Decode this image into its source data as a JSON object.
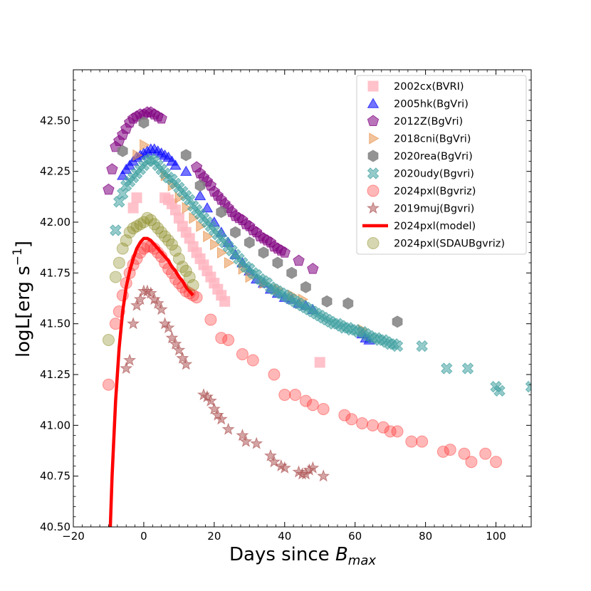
{
  "chart_data": {
    "type": "scatter",
    "title": "",
    "xlabel": "Days since B_max",
    "xlabel_prefix": "Days since ",
    "xlabel_italic": "B",
    "xlabel_sub": "max",
    "ylabel": "logL[erg s^-1]",
    "ylabel_main": "logL[erg s",
    "ylabel_sup": "−1",
    "ylabel_close": "]",
    "xlim": [
      -20,
      110
    ],
    "ylim": [
      40.5,
      42.75
    ],
    "xticks": [
      -20,
      0,
      20,
      40,
      60,
      80,
      100
    ],
    "xtick_labels": [
      "−20",
      "0",
      "20",
      "40",
      "60",
      "80",
      "100"
    ],
    "yticks": [
      40.5,
      40.75,
      41.0,
      41.25,
      41.5,
      41.75,
      42.0,
      42.25,
      42.5
    ],
    "ytick_labels": [
      "40.50",
      "40.75",
      "41.00",
      "41.25",
      "41.50",
      "41.75",
      "42.00",
      "42.25",
      "42.50"
    ],
    "legend_position": "top-right",
    "series": [
      {
        "name": "2002cx(BVRI)",
        "marker": "square",
        "color": "#ffb6c1",
        "x": [
          -3,
          -2,
          6,
          7,
          8,
          9,
          10,
          11,
          12,
          13,
          14,
          15,
          16,
          17,
          18,
          19,
          20,
          21,
          22,
          23,
          50
        ],
        "y": [
          42.07,
          42.12,
          42.12,
          42.11,
          42.09,
          42.06,
          42.02,
          41.98,
          41.95,
          41.92,
          41.88,
          41.85,
          41.82,
          41.79,
          41.76,
          41.73,
          41.7,
          41.67,
          41.64,
          41.61,
          41.31
        ]
      },
      {
        "name": "2005hk(BgVri)",
        "marker": "triangle",
        "color": "#0000ff",
        "x": [
          -6,
          -5,
          -4,
          -3,
          -2,
          -1,
          0,
          1,
          2,
          3,
          4,
          5,
          6,
          7,
          8,
          9,
          12,
          16,
          18,
          20,
          22,
          24,
          26,
          28,
          30,
          32,
          34,
          36,
          38,
          40,
          42,
          44,
          46,
          48,
          62,
          63,
          64
        ],
        "y": [
          42.23,
          42.26,
          42.28,
          42.3,
          42.32,
          42.33,
          42.34,
          42.35,
          42.36,
          42.36,
          42.35,
          42.34,
          42.33,
          42.32,
          42.3,
          42.28,
          42.25,
          42.13,
          42.07,
          42.0,
          41.95,
          41.9,
          41.84,
          41.8,
          41.76,
          41.72,
          41.7,
          41.67,
          41.65,
          41.63,
          41.62,
          41.6,
          41.59,
          41.57,
          41.45,
          41.43,
          41.42
        ]
      },
      {
        "name": "2012Z(BgVri)",
        "marker": "pentagon",
        "color": "#800080",
        "x": [
          -10,
          -9,
          -8,
          -7,
          -6,
          -5,
          -4,
          -3,
          -2,
          -1,
          0,
          1,
          2,
          3,
          4,
          5,
          15,
          16,
          17,
          18,
          19,
          20,
          21,
          22,
          23,
          24,
          25,
          26,
          27,
          28,
          29,
          30,
          31,
          32,
          33,
          34,
          35,
          36,
          37,
          38,
          39,
          40,
          44,
          48
        ],
        "y": [
          42.16,
          42.26,
          42.37,
          42.4,
          42.43,
          42.46,
          42.49,
          42.51,
          42.52,
          42.53,
          42.53,
          42.54,
          42.54,
          42.53,
          42.52,
          42.51,
          42.27,
          42.24,
          42.22,
          42.2,
          42.18,
          42.15,
          42.13,
          42.11,
          42.09,
          42.07,
          42.05,
          42.03,
          42.02,
          42.01,
          41.99,
          41.98,
          41.96,
          41.95,
          41.93,
          41.92,
          41.91,
          41.9,
          41.88,
          41.87,
          41.86,
          41.85,
          41.81,
          41.77
        ]
      },
      {
        "name": "2018cni(BgVri)",
        "marker": "triangle-right",
        "color": "#e8944e",
        "x": [
          -2,
          0,
          6,
          8,
          10,
          12,
          14,
          16,
          18,
          20,
          22,
          24,
          28,
          30,
          34,
          38,
          42,
          45,
          62
        ],
        "y": [
          42.33,
          42.38,
          42.23,
          42.18,
          42.12,
          42.07,
          42.02,
          41.98,
          41.93,
          41.89,
          41.85,
          41.8,
          41.77,
          41.73,
          41.7,
          41.67,
          41.64,
          41.62,
          41.47
        ]
      },
      {
        "name": "2020rea(BgVri)",
        "marker": "hexagon",
        "color": "#808080",
        "x": [
          -6,
          0,
          12,
          16,
          22,
          26,
          30,
          34,
          38,
          42,
          46,
          52,
          58,
          72
        ],
        "y": [
          42.35,
          42.49,
          42.33,
          42.18,
          42.05,
          41.95,
          41.9,
          41.85,
          41.8,
          41.75,
          41.68,
          41.61,
          41.6,
          41.51
        ]
      },
      {
        "name": "2020udy(Bgvri)",
        "marker": "x",
        "color": "#40a0a0",
        "x": [
          -8,
          -7,
          -6,
          -5,
          -4,
          -3,
          -2,
          -1,
          0,
          1,
          2,
          3,
          4,
          5,
          6,
          7,
          8,
          9,
          10,
          11,
          12,
          13,
          14,
          15,
          16,
          17,
          18,
          19,
          20,
          21,
          22,
          23,
          24,
          25,
          26,
          27,
          28,
          29,
          30,
          31,
          32,
          33,
          34,
          35,
          36,
          37,
          38,
          39,
          40,
          41,
          42,
          43,
          44,
          45,
          46,
          47,
          48,
          49,
          50,
          51,
          52,
          53,
          54,
          55,
          56,
          57,
          58,
          59,
          60,
          61,
          62,
          63,
          64,
          65,
          66,
          67,
          68,
          69,
          70,
          71,
          72,
          79,
          86,
          92,
          100,
          101,
          110
        ],
        "y": [
          41.96,
          42.1,
          42.14,
          42.18,
          42.2,
          42.22,
          42.24,
          42.26,
          42.28,
          42.3,
          42.31,
          42.3,
          42.28,
          42.26,
          42.24,
          42.22,
          42.21,
          42.19,
          42.17,
          42.15,
          42.13,
          42.11,
          42.08,
          42.06,
          42.04,
          42.02,
          42.0,
          41.98,
          41.96,
          41.94,
          41.92,
          41.9,
          41.88,
          41.86,
          41.84,
          41.82,
          41.8,
          41.78,
          41.77,
          41.75,
          41.74,
          41.72,
          41.71,
          41.7,
          41.68,
          41.67,
          41.66,
          41.65,
          41.64,
          41.63,
          41.62,
          41.61,
          41.6,
          41.59,
          41.58,
          41.57,
          41.56,
          41.55,
          41.54,
          41.53,
          41.52,
          41.51,
          41.5,
          41.5,
          41.49,
          41.48,
          41.48,
          41.47,
          41.47,
          41.46,
          41.46,
          41.45,
          41.44,
          41.43,
          41.43,
          41.42,
          41.42,
          41.41,
          41.4,
          41.4,
          41.39,
          41.39,
          41.28,
          41.28,
          41.19,
          41.17,
          41.19
        ]
      },
      {
        "name": "2024pxl(Bgvriz)",
        "marker": "circle",
        "color": "#ff3030",
        "x": [
          -10,
          -8,
          -7,
          -6,
          -5,
          -4,
          -3,
          -2,
          -1,
          0,
          1,
          2,
          3,
          4,
          5,
          6,
          7,
          8,
          9,
          10,
          11,
          12,
          13,
          14,
          15,
          19,
          22,
          24,
          28,
          31,
          37,
          40,
          43,
          46,
          48,
          51,
          57,
          59,
          62,
          65,
          68,
          70,
          72,
          76,
          79,
          85,
          87,
          91,
          93,
          97,
          100
        ],
        "y": [
          41.2,
          41.5,
          41.56,
          41.64,
          41.7,
          41.75,
          41.79,
          41.82,
          41.85,
          41.87,
          41.88,
          41.88,
          41.87,
          41.85,
          41.83,
          41.8,
          41.77,
          41.75,
          41.72,
          41.7,
          41.68,
          41.66,
          41.65,
          41.64,
          41.63,
          41.52,
          41.43,
          41.42,
          41.35,
          41.32,
          41.25,
          41.15,
          41.15,
          41.12,
          41.1,
          41.08,
          41.05,
          41.03,
          41.01,
          41.0,
          40.99,
          40.97,
          40.97,
          40.92,
          40.92,
          40.87,
          40.88,
          40.86,
          40.82,
          40.86,
          40.82
        ]
      },
      {
        "name": "2019muj(Bgvri)",
        "marker": "star",
        "color": "#b05a5a",
        "x": [
          -5,
          -4,
          -3,
          -2,
          -1,
          0,
          1,
          2,
          3,
          4,
          5,
          6,
          7,
          8,
          9,
          10,
          11,
          12,
          17,
          18,
          19,
          20,
          21,
          22,
          24,
          28,
          29,
          32,
          36,
          37,
          39,
          40,
          44,
          45,
          46,
          47,
          48,
          51
        ],
        "y": [
          41.28,
          41.32,
          41.5,
          41.59,
          41.62,
          41.66,
          41.66,
          41.65,
          41.62,
          41.6,
          41.57,
          41.5,
          41.48,
          41.43,
          41.4,
          41.37,
          41.33,
          41.3,
          41.15,
          41.14,
          41.12,
          41.08,
          41.05,
          41.03,
          40.98,
          40.95,
          40.92,
          40.91,
          40.85,
          40.82,
          40.8,
          40.79,
          40.77,
          40.76,
          40.76,
          40.78,
          40.79,
          40.75
        ]
      },
      {
        "name": "2024pxl(model)",
        "marker": "line",
        "color": "#ff0000",
        "x": [
          -9.5,
          -9,
          -8,
          -7,
          -6,
          -5,
          -4,
          -3,
          -2,
          -1,
          0,
          1,
          2,
          3,
          4,
          5,
          6,
          7,
          8,
          9,
          10,
          11,
          12,
          13,
          14
        ],
        "y": [
          40.5,
          40.75,
          41.12,
          41.38,
          41.56,
          41.68,
          41.76,
          41.82,
          41.87,
          41.9,
          41.92,
          41.92,
          41.91,
          41.89,
          41.87,
          41.85,
          41.83,
          41.81,
          41.78,
          41.76,
          41.73,
          41.71,
          41.68,
          41.66,
          41.64
        ]
      },
      {
        "name": "2024pxl(SDAUBgvriz)",
        "marker": "circle",
        "color": "#8a8a20",
        "x": [
          -10,
          -8,
          -7,
          -6,
          -5,
          -4,
          -3,
          -2,
          -1,
          0,
          1,
          2,
          3,
          4,
          5,
          6,
          7,
          8,
          9,
          10,
          11,
          12,
          13,
          14
        ],
        "y": [
          41.42,
          41.73,
          41.8,
          41.87,
          41.91,
          41.95,
          41.97,
          41.98,
          41.99,
          42.0,
          42.02,
          42.01,
          41.99,
          41.97,
          41.95,
          41.93,
          41.91,
          41.89,
          41.86,
          41.82,
          41.78,
          41.76,
          41.73,
          41.69
        ]
      }
    ]
  }
}
